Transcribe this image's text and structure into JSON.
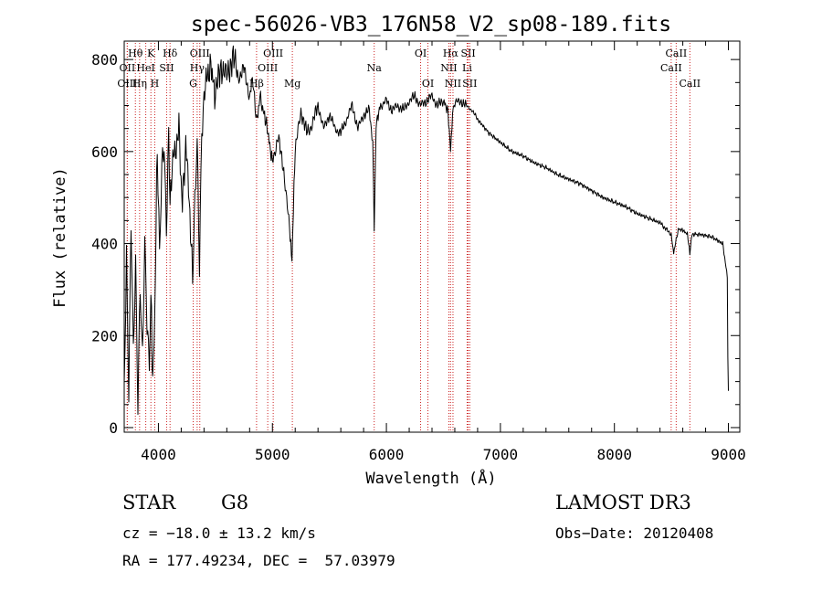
{
  "chart_data": {
    "type": "line",
    "title": "spec-56026-VB3_176N58_V2_sp08-189.fits",
    "xlabel": "Wavelength (Å)",
    "ylabel": "Flux (relative)",
    "xlim": [
      3700,
      9100
    ],
    "ylim": [
      -10,
      840
    ],
    "xticks": [
      4000,
      5000,
      6000,
      7000,
      8000,
      9000
    ],
    "yticks": [
      0,
      200,
      400,
      600,
      800
    ],
    "series": [
      {
        "name": "spectrum",
        "x": [
          3700,
          3720,
          3740,
          3760,
          3780,
          3800,
          3820,
          3840,
          3860,
          3880,
          3900,
          3920,
          3934,
          3950,
          3968,
          3990,
          4010,
          4030,
          4050,
          4070,
          4090,
          4102,
          4120,
          4150,
          4180,
          4210,
          4240,
          4270,
          4300,
          4320,
          4340,
          4360,
          4380,
          4400,
          4430,
          4460,
          4500,
          4550,
          4600,
          4650,
          4700,
          4750,
          4800,
          4830,
          4861,
          4890,
          4920,
          4960,
          5000,
          5050,
          5100,
          5150,
          5172,
          5184,
          5200,
          5250,
          5300,
          5350,
          5400,
          5450,
          5500,
          5550,
          5600,
          5650,
          5700,
          5750,
          5800,
          5850,
          5880,
          5893,
          5910,
          5950,
          6000,
          6050,
          6100,
          6150,
          6200,
          6250,
          6300,
          6350,
          6400,
          6450,
          6500,
          6540,
          6563,
          6580,
          6600,
          6650,
          6700,
          6750,
          6800,
          6900,
          7000,
          7100,
          7200,
          7300,
          7400,
          7500,
          7600,
          7700,
          7800,
          7900,
          8000,
          8100,
          8200,
          8300,
          8400,
          8498,
          8520,
          8542,
          8560,
          8600,
          8640,
          8662,
          8680,
          8750,
          8850,
          8950,
          8990,
          8995,
          9000
        ],
        "values": [
          100,
          380,
          70,
          440,
          150,
          350,
          60,
          320,
          160,
          400,
          220,
          120,
          300,
          100,
          230,
          620,
          380,
          560,
          600,
          420,
          640,
          470,
          580,
          600,
          650,
          480,
          620,
          500,
          320,
          480,
          610,
          350,
          650,
          720,
          770,
          780,
          720,
          790,
          760,
          810,
          760,
          780,
          720,
          760,
          660,
          720,
          690,
          640,
          580,
          630,
          560,
          430,
          360,
          480,
          600,
          690,
          640,
          660,
          700,
          650,
          680,
          650,
          640,
          670,
          700,
          650,
          680,
          690,
          620,
          430,
          660,
          700,
          710,
          690,
          700,
          690,
          710,
          720,
          700,
          710,
          720,
          700,
          710,
          690,
          600,
          680,
          705,
          710,
          700,
          690,
          670,
          640,
          620,
          600,
          590,
          575,
          565,
          550,
          540,
          530,
          515,
          500,
          490,
          480,
          465,
          455,
          445,
          420,
          380,
          410,
          430,
          430,
          420,
          380,
          420,
          420,
          415,
          400,
          330,
          150,
          80
        ]
      }
    ],
    "spectral_lines": [
      {
        "label": "Hθ",
        "x": 3798,
        "row": 0
      },
      {
        "label": "K",
        "x": 3934,
        "row": 0
      },
      {
        "label": "Hδ",
        "x": 4102,
        "row": 0
      },
      {
        "label": "OIII",
        "x": 4363,
        "row": 0
      },
      {
        "label": "OIII",
        "x": 5007,
        "row": 0
      },
      {
        "label": "OI",
        "x": 6300,
        "row": 0
      },
      {
        "label": "Hα",
        "x": 6563,
        "row": 0
      },
      {
        "label": "SII",
        "x": 6717,
        "row": 0
      },
      {
        "label": "CaII",
        "x": 8542,
        "row": 0
      },
      {
        "label": "OII",
        "x": 3727,
        "row": 1
      },
      {
        "label": "HeI",
        "x": 3889,
        "row": 1
      },
      {
        "label": "SII",
        "x": 4072,
        "row": 1
      },
      {
        "label": "Hγ",
        "x": 4340,
        "row": 1
      },
      {
        "label": "OIII",
        "x": 4959,
        "row": 1
      },
      {
        "label": "Na",
        "x": 5893,
        "row": 1
      },
      {
        "label": "NII",
        "x": 6548,
        "row": 1
      },
      {
        "label": "Li",
        "x": 6708,
        "row": 1
      },
      {
        "label": "CaII",
        "x": 8498,
        "row": 1
      },
      {
        "label": "OIII",
        "x": 3727,
        "row": 2
      },
      {
        "label": "Hη",
        "x": 3835,
        "row": 2
      },
      {
        "label": "H",
        "x": 3968,
        "row": 2
      },
      {
        "label": "G",
        "x": 4305,
        "row": 2
      },
      {
        "label": "Hβ",
        "x": 4861,
        "row": 2
      },
      {
        "label": "Mg",
        "x": 5175,
        "row": 2
      },
      {
        "label": "OI",
        "x": 6364,
        "row": 2
      },
      {
        "label": "NII",
        "x": 6584,
        "row": 2
      },
      {
        "label": "SII",
        "x": 6731,
        "row": 2
      },
      {
        "label": "CaII",
        "x": 8662,
        "row": 2
      }
    ]
  },
  "info": {
    "object_class": "STAR",
    "subclass": "G8",
    "survey": "LAMOST DR3",
    "redshift": "cz = −18.0 ± 13.2 km/s",
    "obs_date": "Obs−Date: 20120408",
    "coords": "RA = 177.49234, DEC =  57.03979"
  },
  "colors": {
    "spectrum": "#000000",
    "line_markers": "#cc2222"
  }
}
